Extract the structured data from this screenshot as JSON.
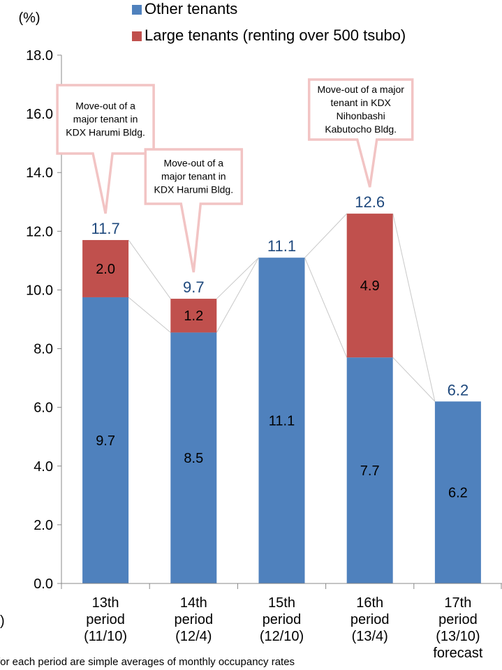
{
  "chart_data": {
    "type": "bar",
    "stacked": true,
    "yunit_label": "(%)",
    "ylim": [
      0,
      18
    ],
    "ytick_labels": [
      "0.0",
      "2.0",
      "4.0",
      "6.0",
      "8.0",
      "10.0",
      "12.0",
      "14.0",
      "16.0",
      "18.0"
    ],
    "categories": [
      [
        "13th",
        "period",
        "(11/10)"
      ],
      [
        "14th",
        "period",
        "(12/4)"
      ],
      [
        "15th",
        "period",
        "(12/10)"
      ],
      [
        "16th",
        "period",
        "(13/4)"
      ],
      [
        "17th",
        "period",
        "(13/10)",
        "forecast"
      ]
    ],
    "series": [
      {
        "name": "Other tenants",
        "color": "#4f81bd",
        "values": [
          9.75,
          8.55,
          11.1,
          7.7,
          6.2
        ],
        "labels": [
          "9.7",
          "8.5",
          "11.1",
          "7.7",
          "6.2"
        ]
      },
      {
        "name": "Large tenants (renting over 500 tsubo)",
        "color": "#c0504d",
        "values": [
          1.95,
          1.15,
          0,
          4.9,
          0
        ],
        "labels": [
          "2.0",
          "1.2",
          "",
          "4.9",
          ""
        ]
      }
    ],
    "totals": [
      11.7,
      9.7,
      11.1,
      12.6,
      6.2
    ],
    "total_labels": [
      "11.7",
      "9.7",
      "11.1",
      "12.6",
      "6.2"
    ],
    "total_label_color": "#1f497d",
    "legend_position": "top",
    "connector_lines": true,
    "callouts": [
      {
        "category_index": 0,
        "lines": [
          "Move-out of a",
          "major tenant in",
          "KDX Harumi Bldg."
        ]
      },
      {
        "category_index": 1,
        "lines": [
          "Move-out of a",
          "major tenant in",
          "KDX Harumi Bldg."
        ]
      },
      {
        "category_index": 3,
        "lines": [
          "Move-out of a major",
          "tenant in KDX",
          "Nihonbashi",
          "Kabutocho Bldg."
        ]
      }
    ],
    "edge_text_left": ")",
    "footnote": "for each period are simple averages of monthly occupancy rates"
  }
}
